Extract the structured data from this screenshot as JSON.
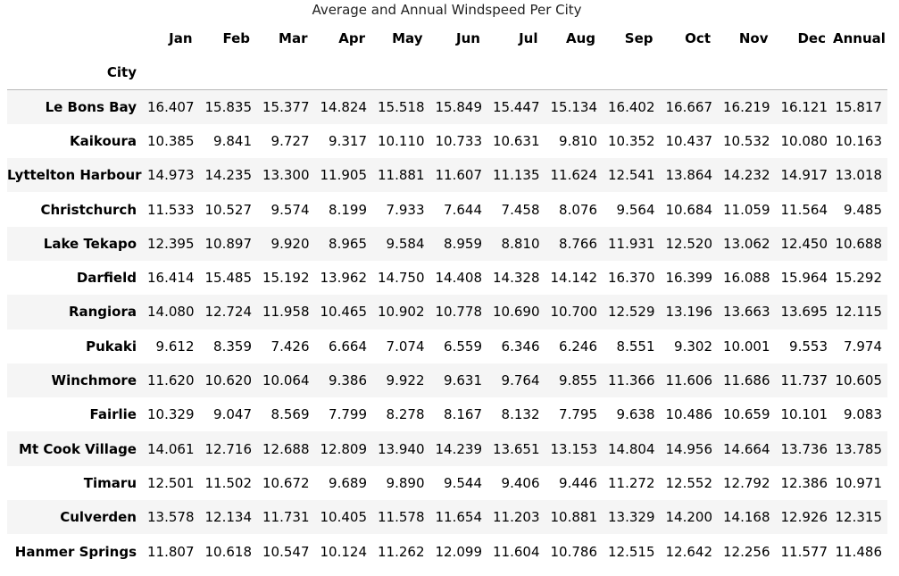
{
  "caption": "Average and Annual Windspeed Per City",
  "index_label": "City",
  "columns": [
    "Jan",
    "Feb",
    "Mar",
    "Apr",
    "May",
    "Jun",
    "Jul",
    "Aug",
    "Sep",
    "Oct",
    "Nov",
    "Dec",
    "Annual"
  ],
  "rows": [
    {
      "city": "Le Bons Bay",
      "values": [
        "16.407",
        "15.835",
        "15.377",
        "14.824",
        "15.518",
        "15.849",
        "15.447",
        "15.134",
        "16.402",
        "16.667",
        "16.219",
        "16.121",
        "15.817"
      ]
    },
    {
      "city": "Kaikoura",
      "values": [
        "10.385",
        "9.841",
        "9.727",
        "9.317",
        "10.110",
        "10.733",
        "10.631",
        "9.810",
        "10.352",
        "10.437",
        "10.532",
        "10.080",
        "10.163"
      ]
    },
    {
      "city": "Lyttelton Harbour",
      "values": [
        "14.973",
        "14.235",
        "13.300",
        "11.905",
        "11.881",
        "11.607",
        "11.135",
        "11.624",
        "12.541",
        "13.864",
        "14.232",
        "14.917",
        "13.018"
      ]
    },
    {
      "city": "Christchurch",
      "values": [
        "11.533",
        "10.527",
        "9.574",
        "8.199",
        "7.933",
        "7.644",
        "7.458",
        "8.076",
        "9.564",
        "10.684",
        "11.059",
        "11.564",
        "9.485"
      ]
    },
    {
      "city": "Lake Tekapo",
      "values": [
        "12.395",
        "10.897",
        "9.920",
        "8.965",
        "9.584",
        "8.959",
        "8.810",
        "8.766",
        "11.931",
        "12.520",
        "13.062",
        "12.450",
        "10.688"
      ]
    },
    {
      "city": "Darfield",
      "values": [
        "16.414",
        "15.485",
        "15.192",
        "13.962",
        "14.750",
        "14.408",
        "14.328",
        "14.142",
        "16.370",
        "16.399",
        "16.088",
        "15.964",
        "15.292"
      ]
    },
    {
      "city": "Rangiora",
      "values": [
        "14.080",
        "12.724",
        "11.958",
        "10.465",
        "10.902",
        "10.778",
        "10.690",
        "10.700",
        "12.529",
        "13.196",
        "13.663",
        "13.695",
        "12.115"
      ]
    },
    {
      "city": "Pukaki",
      "values": [
        "9.612",
        "8.359",
        "7.426",
        "6.664",
        "7.074",
        "6.559",
        "6.346",
        "6.246",
        "8.551",
        "9.302",
        "10.001",
        "9.553",
        "7.974"
      ]
    },
    {
      "city": "Winchmore",
      "values": [
        "11.620",
        "10.620",
        "10.064",
        "9.386",
        "9.922",
        "9.631",
        "9.764",
        "9.855",
        "11.366",
        "11.606",
        "11.686",
        "11.737",
        "10.605"
      ]
    },
    {
      "city": "Fairlie",
      "values": [
        "10.329",
        "9.047",
        "8.569",
        "7.799",
        "8.278",
        "8.167",
        "8.132",
        "7.795",
        "9.638",
        "10.486",
        "10.659",
        "10.101",
        "9.083"
      ]
    },
    {
      "city": "Mt Cook Village",
      "values": [
        "14.061",
        "12.716",
        "12.688",
        "12.809",
        "13.940",
        "14.239",
        "13.651",
        "13.153",
        "14.804",
        "14.956",
        "14.664",
        "13.736",
        "13.785"
      ]
    },
    {
      "city": "Timaru",
      "values": [
        "12.501",
        "11.502",
        "10.672",
        "9.689",
        "9.890",
        "9.544",
        "9.406",
        "9.446",
        "11.272",
        "12.552",
        "12.792",
        "12.386",
        "10.971"
      ]
    },
    {
      "city": "Culverden",
      "values": [
        "13.578",
        "12.134",
        "11.731",
        "10.405",
        "11.578",
        "11.654",
        "11.203",
        "10.881",
        "13.329",
        "14.200",
        "14.168",
        "12.926",
        "12.315"
      ]
    },
    {
      "city": "Hanmer Springs",
      "values": [
        "11.807",
        "10.618",
        "10.547",
        "10.124",
        "11.262",
        "12.099",
        "11.604",
        "10.786",
        "12.515",
        "12.642",
        "12.256",
        "11.577",
        "11.486"
      ]
    }
  ]
}
